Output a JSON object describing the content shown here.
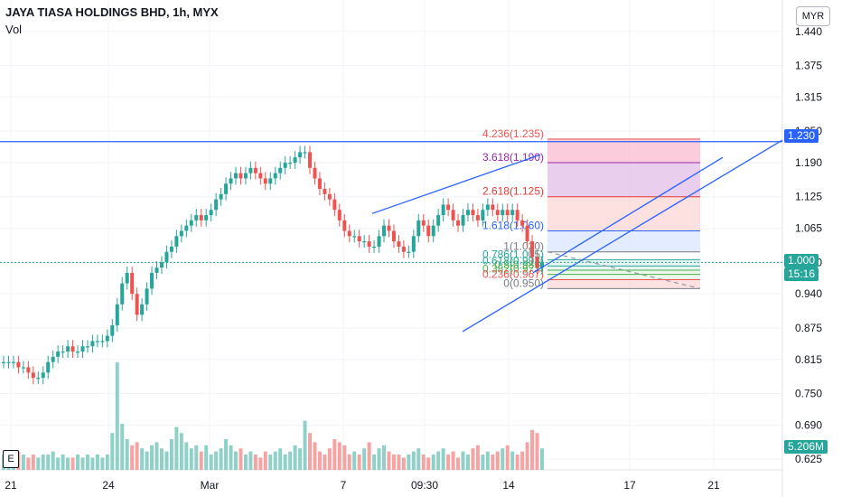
{
  "header": {
    "title": "JAYA TIASA HOLDINGS BHD, 1h, MYX",
    "volume_label": "Vol",
    "currency_button": "MYR",
    "scale_button": "E"
  },
  "colors": {
    "up": "#26a69a",
    "down": "#ef5350",
    "line": "#2962ff",
    "vol_up": "#8fd1c9",
    "vol_down": "#f5a3a3"
  },
  "price_tags": {
    "resistance": "1.230",
    "last": "1.000",
    "countdown": "15:16",
    "volume": "5.206M"
  },
  "chart_data": {
    "type": "candlestick",
    "title": "JAYA TIASA HOLDINGS BHD, 1h, MYX",
    "y_ticks": [
      "1.440",
      "1.375",
      "1.315",
      "1.250",
      "1.190",
      "1.125",
      "1.065",
      "1.000",
      "0.940",
      "0.875",
      "0.815",
      "0.750",
      "0.690",
      "0.625"
    ],
    "x_ticks": [
      "21",
      "24",
      "Mar",
      "7",
      "09:30",
      "14",
      "17",
      "21"
    ],
    "ylim": [
      0.62,
      1.45
    ],
    "closes": [
      0.81,
      0.81,
      0.81,
      0.8,
      0.8,
      0.79,
      0.78,
      0.78,
      0.79,
      0.81,
      0.82,
      0.83,
      0.83,
      0.84,
      0.83,
      0.83,
      0.84,
      0.84,
      0.85,
      0.85,
      0.85,
      0.86,
      0.88,
      0.92,
      0.96,
      0.98,
      0.94,
      0.9,
      0.92,
      0.95,
      0.98,
      0.99,
      1.0,
      1.02,
      1.03,
      1.05,
      1.06,
      1.07,
      1.08,
      1.09,
      1.08,
      1.09,
      1.1,
      1.12,
      1.13,
      1.15,
      1.16,
      1.17,
      1.16,
      1.17,
      1.18,
      1.17,
      1.16,
      1.15,
      1.16,
      1.17,
      1.18,
      1.19,
      1.19,
      1.2,
      1.21,
      1.21,
      1.18,
      1.16,
      1.14,
      1.13,
      1.12,
      1.1,
      1.08,
      1.06,
      1.05,
      1.05,
      1.04,
      1.04,
      1.03,
      1.03,
      1.05,
      1.07,
      1.06,
      1.04,
      1.03,
      1.02,
      1.02,
      1.05,
      1.08,
      1.07,
      1.05,
      1.07,
      1.09,
      1.11,
      1.1,
      1.08,
      1.07,
      1.09,
      1.1,
      1.09,
      1.08,
      1.1,
      1.11,
      1.1,
      1.09,
      1.1,
      1.09,
      1.1,
      1.08,
      1.07,
      1.04,
      1.01,
      0.99,
      1.0
    ],
    "volumes": [
      0.05,
      0.04,
      0.04,
      0.06,
      0.05,
      0.04,
      0.05,
      0.04,
      0.05,
      0.05,
      0.06,
      0.04,
      0.05,
      0.04,
      0.04,
      0.05,
      0.04,
      0.05,
      0.04,
      0.05,
      0.04,
      0.05,
      0.12,
      0.35,
      0.15,
      0.1,
      0.08,
      0.09,
      0.07,
      0.06,
      0.08,
      0.09,
      0.07,
      0.06,
      0.1,
      0.14,
      0.12,
      0.09,
      0.07,
      0.08,
      0.06,
      0.08,
      0.05,
      0.06,
      0.07,
      0.1,
      0.08,
      0.06,
      0.07,
      0.05,
      0.06,
      0.05,
      0.04,
      0.06,
      0.05,
      0.06,
      0.07,
      0.05,
      0.06,
      0.08,
      0.07,
      0.16,
      0.12,
      0.09,
      0.06,
      0.05,
      0.07,
      0.1,
      0.09,
      0.08,
      0.05,
      0.06,
      0.05,
      0.07,
      0.09,
      0.05,
      0.07,
      0.08,
      0.06,
      0.05,
      0.05,
      0.04,
      0.05,
      0.06,
      0.07,
      0.05,
      0.04,
      0.05,
      0.06,
      0.07,
      0.05,
      0.06,
      0.04,
      0.06,
      0.05,
      0.07,
      0.08,
      0.05,
      0.06,
      0.05,
      0.06,
      0.07,
      0.08,
      0.06,
      0.05,
      0.06,
      0.09,
      0.13,
      0.12,
      0.07
    ],
    "fib_levels": [
      {
        "ratio": "4.236",
        "price": 1.235,
        "label": "4.236(1.235)",
        "color": "#ef5350"
      },
      {
        "ratio": "3.618",
        "price": 1.19,
        "label": "3.618(1.190)",
        "color": "#9c27b0"
      },
      {
        "ratio": "2.618",
        "price": 1.125,
        "label": "2.618(1.125)",
        "color": "#e53935"
      },
      {
        "ratio": "1.618",
        "price": 1.06,
        "label": "1.618(1.060)",
        "color": "#2962ff"
      },
      {
        "ratio": "1",
        "price": 1.02,
        "label": "1(1.020)",
        "color": "#787b86"
      },
      {
        "ratio": "0.786",
        "price": 1.005,
        "label": "0.786(1.005)",
        "color": "#26a69a"
      },
      {
        "ratio": "0.618",
        "price": 0.993,
        "label": "0.618(0.993)",
        "color": "#26a69a"
      },
      {
        "ratio": "0.5",
        "price": 0.985,
        "label": "0.5(0.985)",
        "color": "#4caf50"
      },
      {
        "ratio": "0.382",
        "price": 0.977,
        "label": "0.382(0.977)",
        "color": "#4caf50"
      },
      {
        "ratio": "0.236",
        "price": 0.967,
        "label": "0.236(0.967)",
        "color": "#ef5350"
      },
      {
        "ratio": "0",
        "price": 0.95,
        "label": "0(0.950)",
        "color": "#787b86"
      }
    ]
  }
}
